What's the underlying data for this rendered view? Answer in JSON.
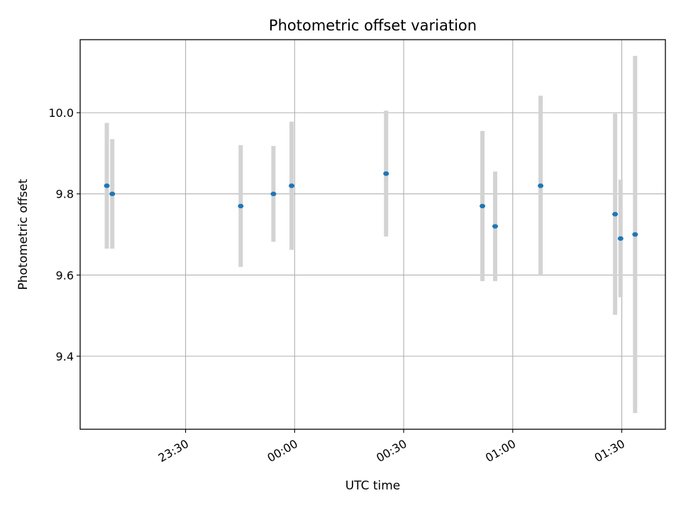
{
  "chart_data": {
    "type": "scatter",
    "title": "Photometric offset variation",
    "xlabel": "UTC time",
    "ylabel": "Photometric offset",
    "x_axis_kind": "time",
    "xlim": [
      "23:01:00",
      "01:42:00"
    ],
    "ylim": [
      9.22,
      10.18
    ],
    "x_ticks": [
      {
        "value": "23:30:00",
        "label": "23:30"
      },
      {
        "value": "00:00:00",
        "label": "00:00"
      },
      {
        "value": "00:30:00",
        "label": "00:30"
      },
      {
        "value": "01:00:00",
        "label": "01:00"
      },
      {
        "value": "01:30:00",
        "label": "01:30"
      }
    ],
    "y_ticks": [
      9.4,
      9.6,
      9.8,
      10.0
    ],
    "y_tick_labels": [
      "9.4",
      "9.6",
      "9.8",
      "10.0"
    ],
    "grid": true,
    "colors": {
      "marker": "#1f77b4",
      "errorbar": "#d3d3d3",
      "grid": "#b0b0b0",
      "axis": "#000000"
    },
    "series": [
      {
        "points": [
          {
            "x": "23:08:20",
            "y": 9.82,
            "err": 0.155
          },
          {
            "x": "23:09:50",
            "y": 9.8,
            "err": 0.135
          },
          {
            "x": "23:45:10",
            "y": 9.77,
            "err": 0.15
          },
          {
            "x": "23:54:10",
            "y": 9.8,
            "err": 0.118
          },
          {
            "x": "23:59:10",
            "y": 9.82,
            "err": 0.158
          },
          {
            "x": "00:25:10",
            "y": 9.85,
            "err": 0.155
          },
          {
            "x": "00:51:40",
            "y": 9.77,
            "err": 0.185
          },
          {
            "x": "00:55:10",
            "y": 9.72,
            "err": 0.135
          },
          {
            "x": "01:07:40",
            "y": 9.82,
            "err": 0.222
          },
          {
            "x": "01:28:10",
            "y": 9.75,
            "err": 0.248
          },
          {
            "x": "01:29:40",
            "y": 9.69,
            "err": 0.145
          },
          {
            "x": "01:33:40",
            "y": 9.7,
            "err": 0.44
          }
        ]
      }
    ]
  }
}
